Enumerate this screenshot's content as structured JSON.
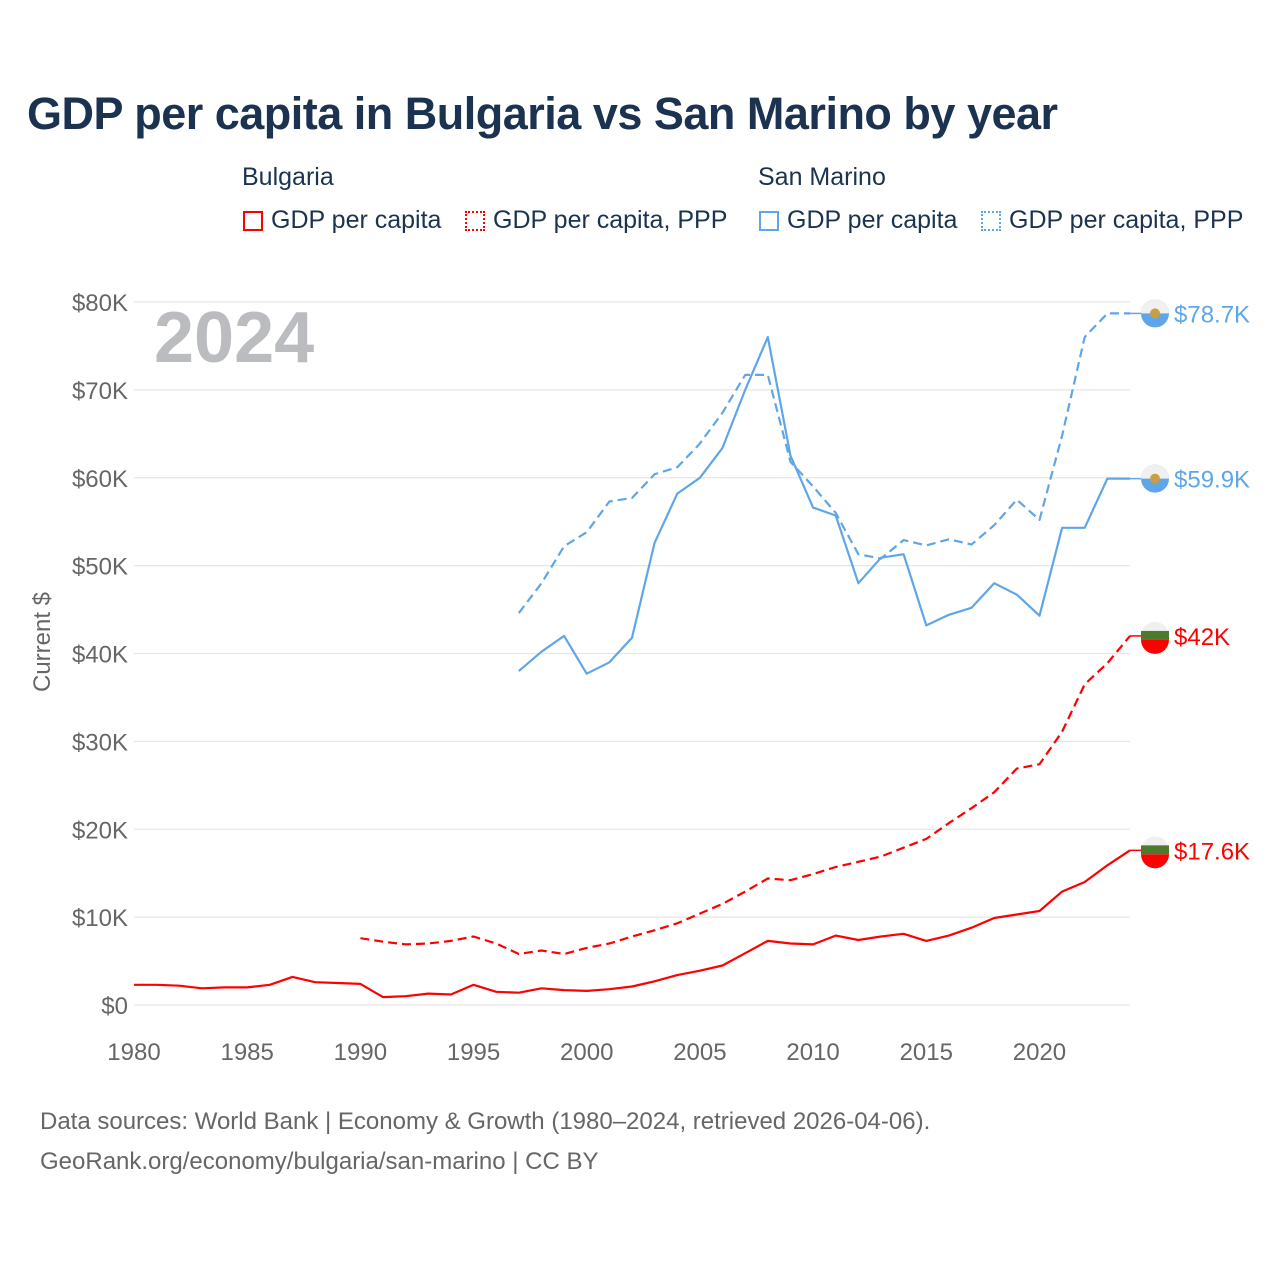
{
  "chart_data": {
    "type": "line",
    "title": "GDP per capita in Bulgaria vs San Marino by year",
    "ylabel": "Current $",
    "xlabel": "",
    "year_watermark": "2024",
    "ylim": [
      0,
      80000
    ],
    "xlim": [
      1980,
      2024
    ],
    "grid": true,
    "y_ticks": [
      {
        "v": 0,
        "label": "$0"
      },
      {
        "v": 10000,
        "label": "$10K"
      },
      {
        "v": 20000,
        "label": "$20K"
      },
      {
        "v": 30000,
        "label": "$30K"
      },
      {
        "v": 40000,
        "label": "$40K"
      },
      {
        "v": 50000,
        "label": "$50K"
      },
      {
        "v": 60000,
        "label": "$60K"
      },
      {
        "v": 70000,
        "label": "$70K"
      },
      {
        "v": 80000,
        "label": "$80K"
      }
    ],
    "x_ticks": [
      1980,
      1985,
      1990,
      1995,
      2000,
      2005,
      2010,
      2015,
      2020
    ],
    "legend": {
      "placement": "top",
      "groups": [
        {
          "name": "Bulgaria",
          "items": [
            "GDP per capita",
            "GDP per capita, PPP"
          ]
        },
        {
          "name": "San Marino",
          "items": [
            "GDP per capita",
            "GDP per capita, PPP"
          ]
        }
      ]
    },
    "colors": {
      "Bulgaria": "#ff0000",
      "San Marino": "#5fa6e8"
    },
    "series": [
      {
        "name": "Bulgaria GDP per capita",
        "country": "Bulgaria",
        "dash": false,
        "start": 1980,
        "end_label": "$17.6K",
        "values": [
          2300,
          2300,
          2200,
          1900,
          2000,
          2000,
          2300,
          3200,
          2600,
          2500,
          2400,
          900,
          1000,
          1300,
          1200,
          2300,
          1500,
          1400,
          1900,
          1700,
          1600,
          1800,
          2100,
          2700,
          3400,
          3900,
          4500,
          5900,
          7300,
          7000,
          6900,
          7900,
          7400,
          7800,
          8100,
          7300,
          7900,
          8800,
          9900,
          10300,
          10700,
          12900,
          14000,
          15900,
          17600
        ]
      },
      {
        "name": "Bulgaria GDP per capita, PPP",
        "country": "Bulgaria",
        "dash": true,
        "start": 1990,
        "end_label": "$42K",
        "values": [
          7600,
          7200,
          6900,
          7000,
          7300,
          7800,
          7000,
          5800,
          6200,
          5800,
          6500,
          7000,
          7800,
          8500,
          9300,
          10400,
          11500,
          12900,
          14400,
          14200,
          14900,
          15700,
          16300,
          16900,
          17900,
          18900,
          20700,
          22400,
          24200,
          26900,
          27400,
          31100,
          36500,
          38900,
          42000
        ]
      },
      {
        "name": "San Marino GDP per capita",
        "country": "San Marino",
        "dash": false,
        "start": 1997,
        "end_label": "$59.9K",
        "values": [
          38000,
          40200,
          42000,
          37700,
          39000,
          41800,
          52600,
          58200,
          60000,
          63400,
          70000,
          76000,
          62500,
          56600,
          55700,
          48000,
          50900,
          51300,
          43200,
          44400,
          45200,
          48000,
          46700,
          44300,
          54300,
          54300,
          59900,
          59900
        ]
      },
      {
        "name": "San Marino GDP per capita, PPP",
        "country": "San Marino",
        "dash": true,
        "start": 1997,
        "end_label": "$78.7K",
        "values": [
          44600,
          48000,
          52200,
          53800,
          57300,
          57700,
          60400,
          61200,
          63900,
          67400,
          71700,
          71700,
          61800,
          59000,
          56000,
          51300,
          50800,
          52900,
          52300,
          53000,
          52400,
          54600,
          57500,
          55200,
          64800,
          76000,
          78700,
          78700
        ]
      }
    ]
  },
  "footer": {
    "line1": "Data sources: World Bank | Economy & Growth (1980–2024, retrieved 2026-04-06).",
    "line2": "GeoRank.org/economy/bulgaria/san-marino | CC BY"
  }
}
